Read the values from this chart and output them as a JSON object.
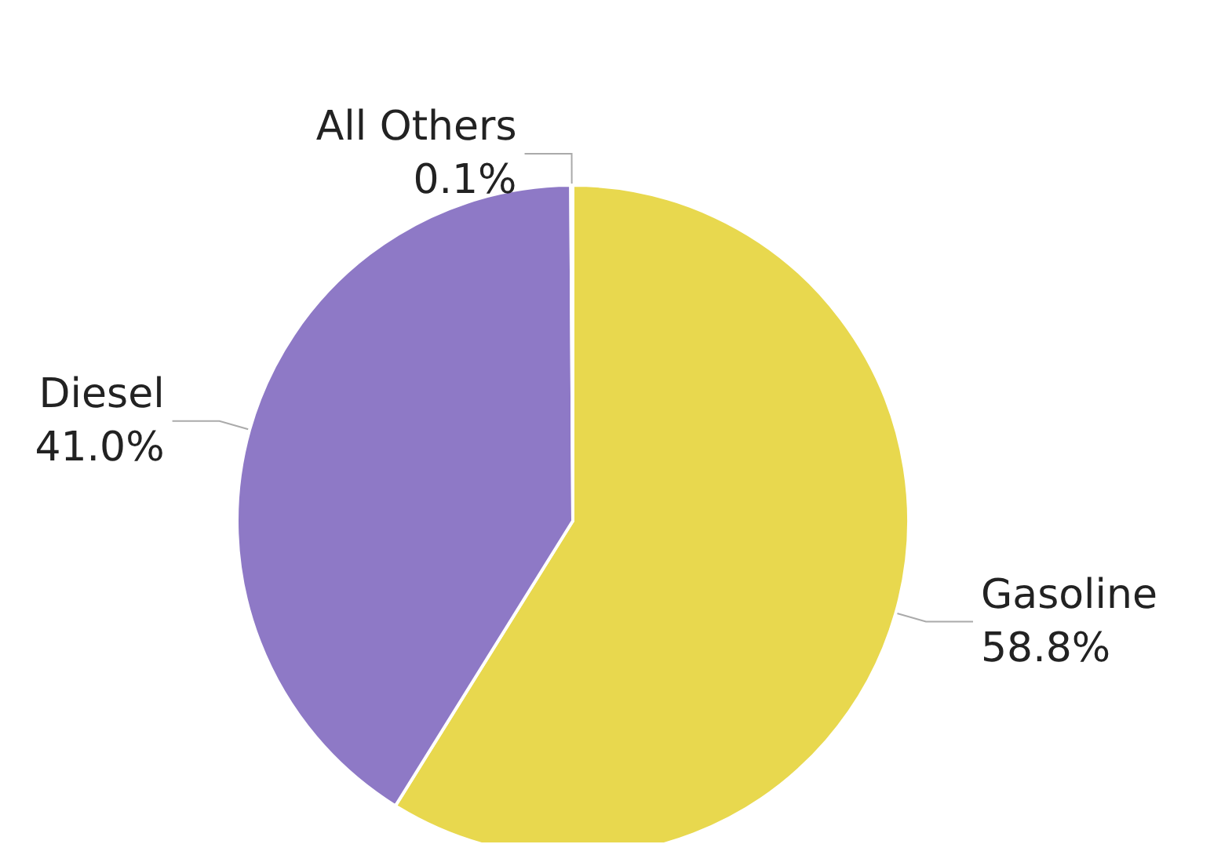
{
  "chart_data": {
    "type": "pie",
    "categories": [
      "Gasoline",
      "Diesel",
      "All Others"
    ],
    "values": [
      58.8,
      41.0,
      0.1
    ],
    "colors": [
      "#e8d84e",
      "#8e79c6",
      "#a5a5a5"
    ],
    "value_labels": [
      "58.8%",
      "41.0%",
      "0.1%"
    ],
    "legend": false
  }
}
